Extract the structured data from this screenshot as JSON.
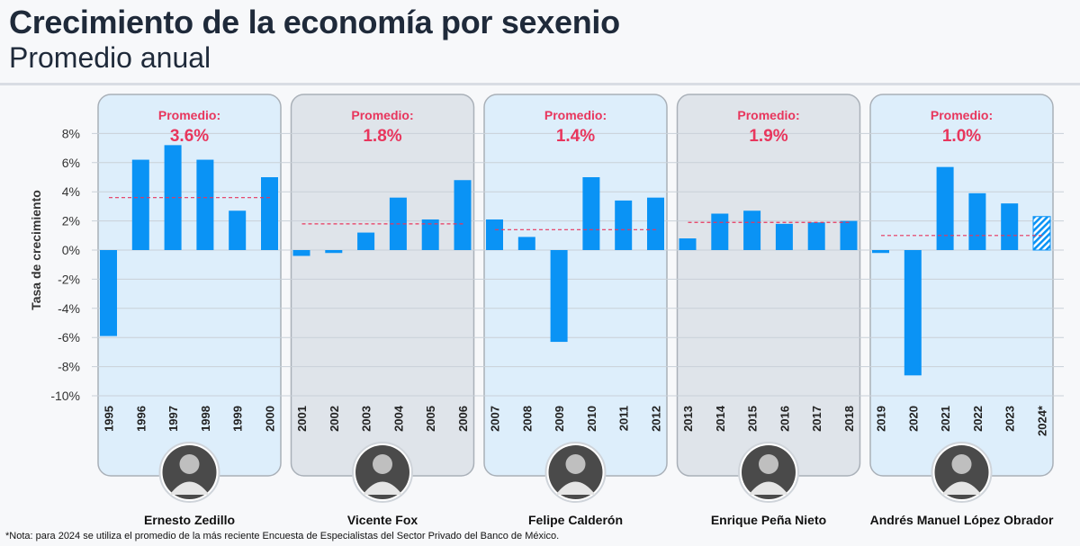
{
  "header": {
    "title": "Crecimiento de la economía por sexenio",
    "subtitle": "Promedio anual"
  },
  "footnote": "*Nota: para 2024 se utiliza el promedio de la más reciente Encuesta de Especialistas del Sector Privado del Banco de México.",
  "colors": {
    "bar": "#0a93f5",
    "average_line": "#e8365d",
    "panel_light": "#ddeefb",
    "panel_gray": "#dfe4ea",
    "panel_border": "#a9b0b8",
    "gridline": "#c9d0d8"
  },
  "chart_data": {
    "type": "bar",
    "title": "Crecimiento de la economía por sexenio",
    "subtitle": "Promedio anual",
    "ylabel": "Tasa de crecimiento",
    "ylim": [
      -10,
      10
    ],
    "yticks": [
      8,
      6,
      4,
      2,
      0,
      -2,
      -4,
      -6,
      -8,
      -10
    ],
    "ytick_labels": [
      "8%",
      "6%",
      "4%",
      "2%",
      "0%",
      "-2%",
      "-4%",
      "-6%",
      "-8%",
      "-10%"
    ],
    "grid": true,
    "average_label": "Promedio:",
    "panels": [
      {
        "president": "Ernesto Zedillo",
        "shade": "light",
        "average": 3.6,
        "average_text": "3.6%",
        "years": [
          "1995",
          "1996",
          "1997",
          "1998",
          "1999",
          "2000"
        ],
        "values": [
          -5.9,
          6.2,
          7.2,
          6.2,
          2.7,
          5.0
        ]
      },
      {
        "president": "Vicente Fox",
        "shade": "gray",
        "average": 1.8,
        "average_text": "1.8%",
        "years": [
          "2001",
          "2002",
          "2003",
          "2004",
          "2005",
          "2006"
        ],
        "values": [
          -0.4,
          -0.2,
          1.2,
          3.6,
          2.1,
          4.8
        ]
      },
      {
        "president": "Felipe Calderón",
        "shade": "light",
        "average": 1.4,
        "average_text": "1.4%",
        "years": [
          "2007",
          "2008",
          "2009",
          "2010",
          "2011",
          "2012"
        ],
        "values": [
          2.1,
          0.9,
          -6.3,
          5.0,
          3.4,
          3.6
        ]
      },
      {
        "president": "Enrique Peña Nieto",
        "shade": "gray",
        "average": 1.9,
        "average_text": "1.9%",
        "years": [
          "2013",
          "2014",
          "2015",
          "2016",
          "2017",
          "2018"
        ],
        "values": [
          0.8,
          2.5,
          2.7,
          1.8,
          1.9,
          2.0
        ]
      },
      {
        "president": "Andrés Manuel López Obrador",
        "shade": "light",
        "average": 1.0,
        "average_text": "1.0%",
        "years": [
          "2019",
          "2020",
          "2021",
          "2022",
          "2023",
          "2024*"
        ],
        "values": [
          -0.2,
          -8.6,
          5.7,
          3.9,
          3.2,
          2.3
        ],
        "estimated_last": true
      }
    ]
  }
}
